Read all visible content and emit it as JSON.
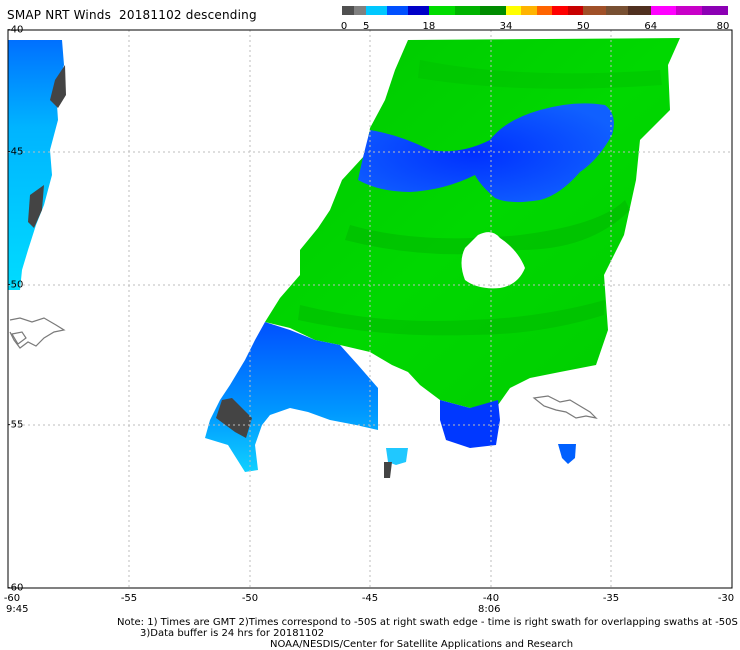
{
  "title": "SMAP NRT Winds  20181102 descending",
  "colorbar": {
    "labels": [
      {
        "text": "0",
        "pos": 0
      },
      {
        "text": "5",
        "pos": 5
      },
      {
        "text": "18",
        "pos": 18
      },
      {
        "text": "34",
        "pos": 34
      },
      {
        "text": "50",
        "pos": 50
      },
      {
        "text": "64",
        "pos": 64
      },
      {
        "text": "80",
        "pos": 80
      }
    ],
    "segments": [
      {
        "from": 0,
        "to": 5,
        "colors": [
          "#505050",
          "#808080"
        ]
      },
      {
        "from": 5,
        "to": 18,
        "colors": [
          "#00c8ff",
          "#0050ff",
          "#0000c8"
        ]
      },
      {
        "from": 18,
        "to": 34,
        "colors": [
          "#00dc00",
          "#00b400",
          "#008c00"
        ]
      },
      {
        "from": 34,
        "to": 50,
        "colors": [
          "#ffff00",
          "#ffb400",
          "#ff6400",
          "#ff0000",
          "#c80000"
        ]
      },
      {
        "from": 50,
        "to": 64,
        "colors": [
          "#a05028",
          "#785032",
          "#503020"
        ]
      },
      {
        "from": 64,
        "to": 80,
        "colors": [
          "#ff00ff",
          "#c800c8",
          "#8c00b4"
        ]
      }
    ]
  },
  "map": {
    "lon_labels": [
      "-60",
      "-55",
      "-50",
      "-45",
      "-40",
      "-35",
      "-30"
    ],
    "lat_labels": [
      "-40",
      "-45",
      "-50",
      "-55",
      "-60"
    ],
    "time_left": "9:45",
    "time_mid": "8:06"
  },
  "notes": {
    "line1": "Note: 1) Times are GMT 2)Times correspond to -50S at right swath edge - time is right swath for overlapping swaths at -50S",
    "line2": "3)Data buffer is 24 hrs for 20181102",
    "line3": "NOAA/NESDIS/Center for Satellite Applications and Research"
  },
  "colors": {
    "calm": "#444444",
    "light_wind": "#00ccff",
    "moderate_wind": "#0044ff",
    "strong_wind": "#00cc00",
    "coastline": "#7a7a7a"
  }
}
